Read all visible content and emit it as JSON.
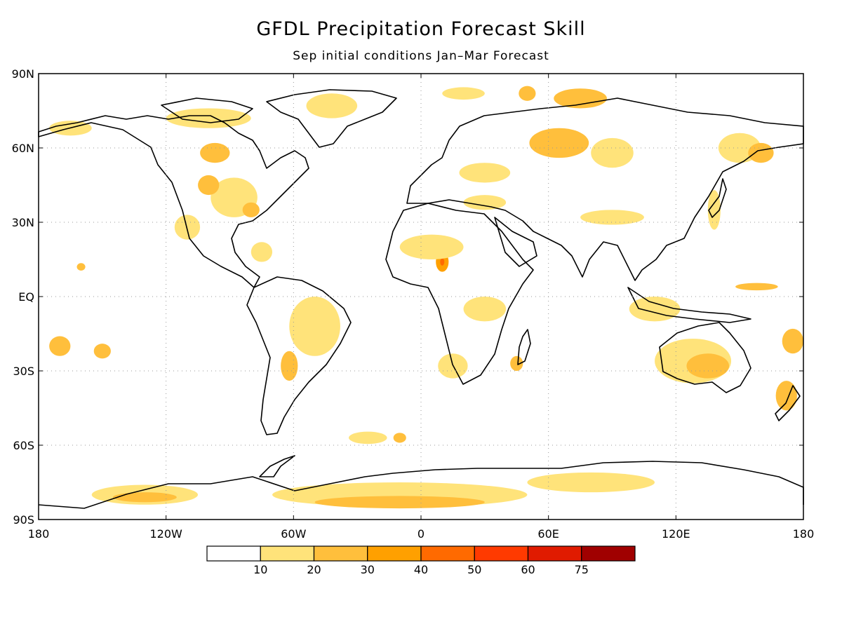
{
  "title": "GFDL Precipitation Forecast Skill",
  "subtitle": "Sep initial conditions   Jan–Mar Forecast",
  "map": {
    "projection": "equirectangular",
    "lon_range": [
      -180,
      180
    ],
    "lat_range": [
      -90,
      90
    ],
    "grid": true,
    "lat_ticks": [
      {
        "value": 90,
        "label": "90N"
      },
      {
        "value": 60,
        "label": "60N"
      },
      {
        "value": 30,
        "label": "30N"
      },
      {
        "value": 0,
        "label": "EQ"
      },
      {
        "value": -30,
        "label": "30S"
      },
      {
        "value": -60,
        "label": "60S"
      },
      {
        "value": -90,
        "label": "90S"
      }
    ],
    "lon_ticks": [
      {
        "value": -180,
        "label": "180"
      },
      {
        "value": -120,
        "label": "120W"
      },
      {
        "value": -60,
        "label": "60W"
      },
      {
        "value": 0,
        "label": "0"
      },
      {
        "value": 60,
        "label": "60E"
      },
      {
        "value": 120,
        "label": "120E"
      },
      {
        "value": 180,
        "label": "180"
      }
    ]
  },
  "colorbar": {
    "levels": [
      "10",
      "20",
      "30",
      "40",
      "50",
      "60",
      "75"
    ],
    "colors": [
      "#ffffff",
      "#ffe37a",
      "#ffbf3c",
      "#ffa000",
      "#ff6a00",
      "#ff3a00",
      "#e01b00",
      "#a00000"
    ]
  },
  "skill_regions": [
    {
      "lon": -100,
      "lat": 72,
      "w": 40,
      "h": 8,
      "level": 1
    },
    {
      "lon": -97,
      "lat": 58,
      "w": 14,
      "h": 8,
      "level": 2
    },
    {
      "lon": -88,
      "lat": 40,
      "w": 22,
      "h": 16,
      "level": 1
    },
    {
      "lon": -80,
      "lat": 35,
      "w": 8,
      "h": 6,
      "level": 2
    },
    {
      "lon": -100,
      "lat": 45,
      "w": 10,
      "h": 8,
      "level": 2
    },
    {
      "lon": -110,
      "lat": 28,
      "w": 12,
      "h": 10,
      "level": 1
    },
    {
      "lon": -75,
      "lat": 18,
      "w": 10,
      "h": 8,
      "level": 1
    },
    {
      "lon": -160,
      "lat": 12,
      "w": 4,
      "h": 3,
      "level": 2
    },
    {
      "lon": -165,
      "lat": 68,
      "w": 20,
      "h": 6,
      "level": 1
    },
    {
      "lon": -42,
      "lat": 77,
      "w": 24,
      "h": 10,
      "level": 1
    },
    {
      "lon": 20,
      "lat": 82,
      "w": 20,
      "h": 5,
      "level": 1
    },
    {
      "lon": 50,
      "lat": 82,
      "w": 8,
      "h": 6,
      "level": 2
    },
    {
      "lon": 75,
      "lat": 80,
      "w": 25,
      "h": 8,
      "level": 2
    },
    {
      "lon": 65,
      "lat": 62,
      "w": 28,
      "h": 12,
      "level": 2
    },
    {
      "lon": 90,
      "lat": 58,
      "w": 20,
      "h": 12,
      "level": 1
    },
    {
      "lon": 30,
      "lat": 50,
      "w": 24,
      "h": 8,
      "level": 1
    },
    {
      "lon": 30,
      "lat": 38,
      "w": 20,
      "h": 6,
      "level": 1
    },
    {
      "lon": 150,
      "lat": 60,
      "w": 20,
      "h": 12,
      "level": 1
    },
    {
      "lon": 160,
      "lat": 58,
      "w": 12,
      "h": 8,
      "level": 2
    },
    {
      "lon": 138,
      "lat": 35,
      "w": 6,
      "h": 16,
      "level": 1
    },
    {
      "lon": 90,
      "lat": 32,
      "w": 30,
      "h": 6,
      "level": 1
    },
    {
      "lon": 10,
      "lat": 14,
      "w": 6,
      "h": 8,
      "level": 3
    },
    {
      "lon": 10,
      "lat": 14,
      "w": 2,
      "h": 3,
      "level": 4
    },
    {
      "lon": 5,
      "lat": 20,
      "w": 30,
      "h": 10,
      "level": 1
    },
    {
      "lon": 30,
      "lat": -5,
      "w": 20,
      "h": 10,
      "level": 1
    },
    {
      "lon": 45,
      "lat": -27,
      "w": 6,
      "h": 6,
      "level": 2
    },
    {
      "lon": 15,
      "lat": -28,
      "w": 14,
      "h": 10,
      "level": 1
    },
    {
      "lon": -50,
      "lat": -12,
      "w": 24,
      "h": 24,
      "level": 1
    },
    {
      "lon": -62,
      "lat": -28,
      "w": 8,
      "h": 12,
      "level": 2
    },
    {
      "lon": -25,
      "lat": -57,
      "w": 18,
      "h": 5,
      "level": 1
    },
    {
      "lon": -10,
      "lat": -57,
      "w": 6,
      "h": 4,
      "level": 2
    },
    {
      "lon": -170,
      "lat": -20,
      "w": 10,
      "h": 8,
      "level": 2
    },
    {
      "lon": -150,
      "lat": -22,
      "w": 8,
      "h": 6,
      "level": 2
    },
    {
      "lon": 128,
      "lat": -26,
      "w": 36,
      "h": 18,
      "level": 1
    },
    {
      "lon": 135,
      "lat": -28,
      "w": 20,
      "h": 10,
      "level": 2
    },
    {
      "lon": 175,
      "lat": -18,
      "w": 10,
      "h": 10,
      "level": 2
    },
    {
      "lon": 172,
      "lat": -40,
      "w": 10,
      "h": 12,
      "level": 2
    },
    {
      "lon": 110,
      "lat": -5,
      "w": 24,
      "h": 10,
      "level": 1
    },
    {
      "lon": 158,
      "lat": 4,
      "w": 20,
      "h": 3,
      "level": 2
    },
    {
      "lon": -10,
      "lat": -80,
      "w": 120,
      "h": 10,
      "level": 1
    },
    {
      "lon": -10,
      "lat": -83,
      "w": 80,
      "h": 5,
      "level": 2
    },
    {
      "lon": -130,
      "lat": -80,
      "w": 50,
      "h": 8,
      "level": 1
    },
    {
      "lon": -130,
      "lat": -81,
      "w": 30,
      "h": 4,
      "level": 2
    },
    {
      "lon": 80,
      "lat": -75,
      "w": 60,
      "h": 8,
      "level": 1
    }
  ]
}
